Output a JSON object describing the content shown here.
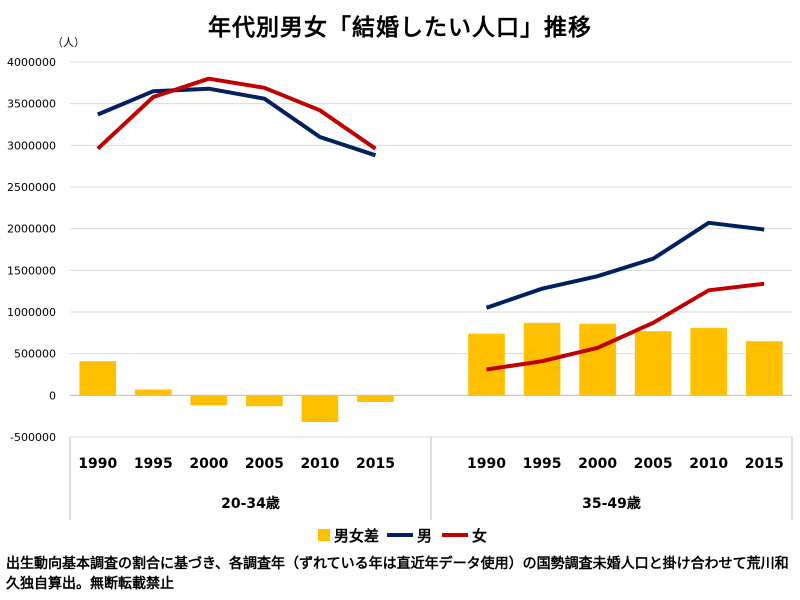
{
  "title": "年代別男女「結婚したい人口」推移",
  "footnote": "出生動向基本調査の割合に基づき、各調査年（ずれている年は直近年データ使用）の国勢調査未婚人口と掛け合わせて荒川和久独自算出。無断転載禁止",
  "colors": {
    "bar": "#FFC000",
    "male": "#002060",
    "female": "#C00000",
    "grid": "#d9d9d9",
    "axis": "#bfbfbf"
  },
  "chart_data": {
    "type": "bar",
    "ylabel": "（人）",
    "ylim": [
      -500000,
      4000000
    ],
    "yticks": [
      -500000,
      0,
      500000,
      1000000,
      1500000,
      2000000,
      2500000,
      3000000,
      3500000,
      4000000
    ],
    "yticks_labels": [
      "-500000",
      "0",
      "500000",
      "1000000",
      "1500000",
      "2000000",
      "2500000",
      "3000000",
      "3500000",
      "4000000"
    ],
    "grid": true,
    "legend": "bottom",
    "groups": [
      {
        "label": "20-34歳",
        "categories": [
          "1990",
          "1995",
          "2000",
          "2005",
          "2010",
          "2015"
        ],
        "series": [
          {
            "name": "男女差",
            "type": "bar",
            "values": [
              410000,
              70000,
              -120000,
              -130000,
              -320000,
              -80000
            ]
          },
          {
            "name": "男",
            "type": "line",
            "values": [
              3370000,
              3650000,
              3680000,
              3560000,
              3100000,
              2880000
            ]
          },
          {
            "name": "女",
            "type": "line",
            "values": [
              2960000,
              3580000,
              3800000,
              3690000,
              3420000,
              2960000
            ]
          }
        ]
      },
      {
        "label": "35-49歳",
        "categories": [
          "1990",
          "1995",
          "2000",
          "2005",
          "2010",
          "2015"
        ],
        "series": [
          {
            "name": "男女差",
            "type": "bar",
            "values": [
              740000,
              870000,
              860000,
              770000,
              810000,
              650000
            ]
          },
          {
            "name": "男",
            "type": "line",
            "values": [
              1050000,
              1280000,
              1430000,
              1640000,
              2070000,
              1990000
            ]
          },
          {
            "name": "女",
            "type": "line",
            "values": [
              310000,
              410000,
              570000,
              870000,
              1260000,
              1340000
            ]
          }
        ]
      }
    ],
    "legend_entries": [
      "男女差",
      "男",
      "女"
    ]
  }
}
